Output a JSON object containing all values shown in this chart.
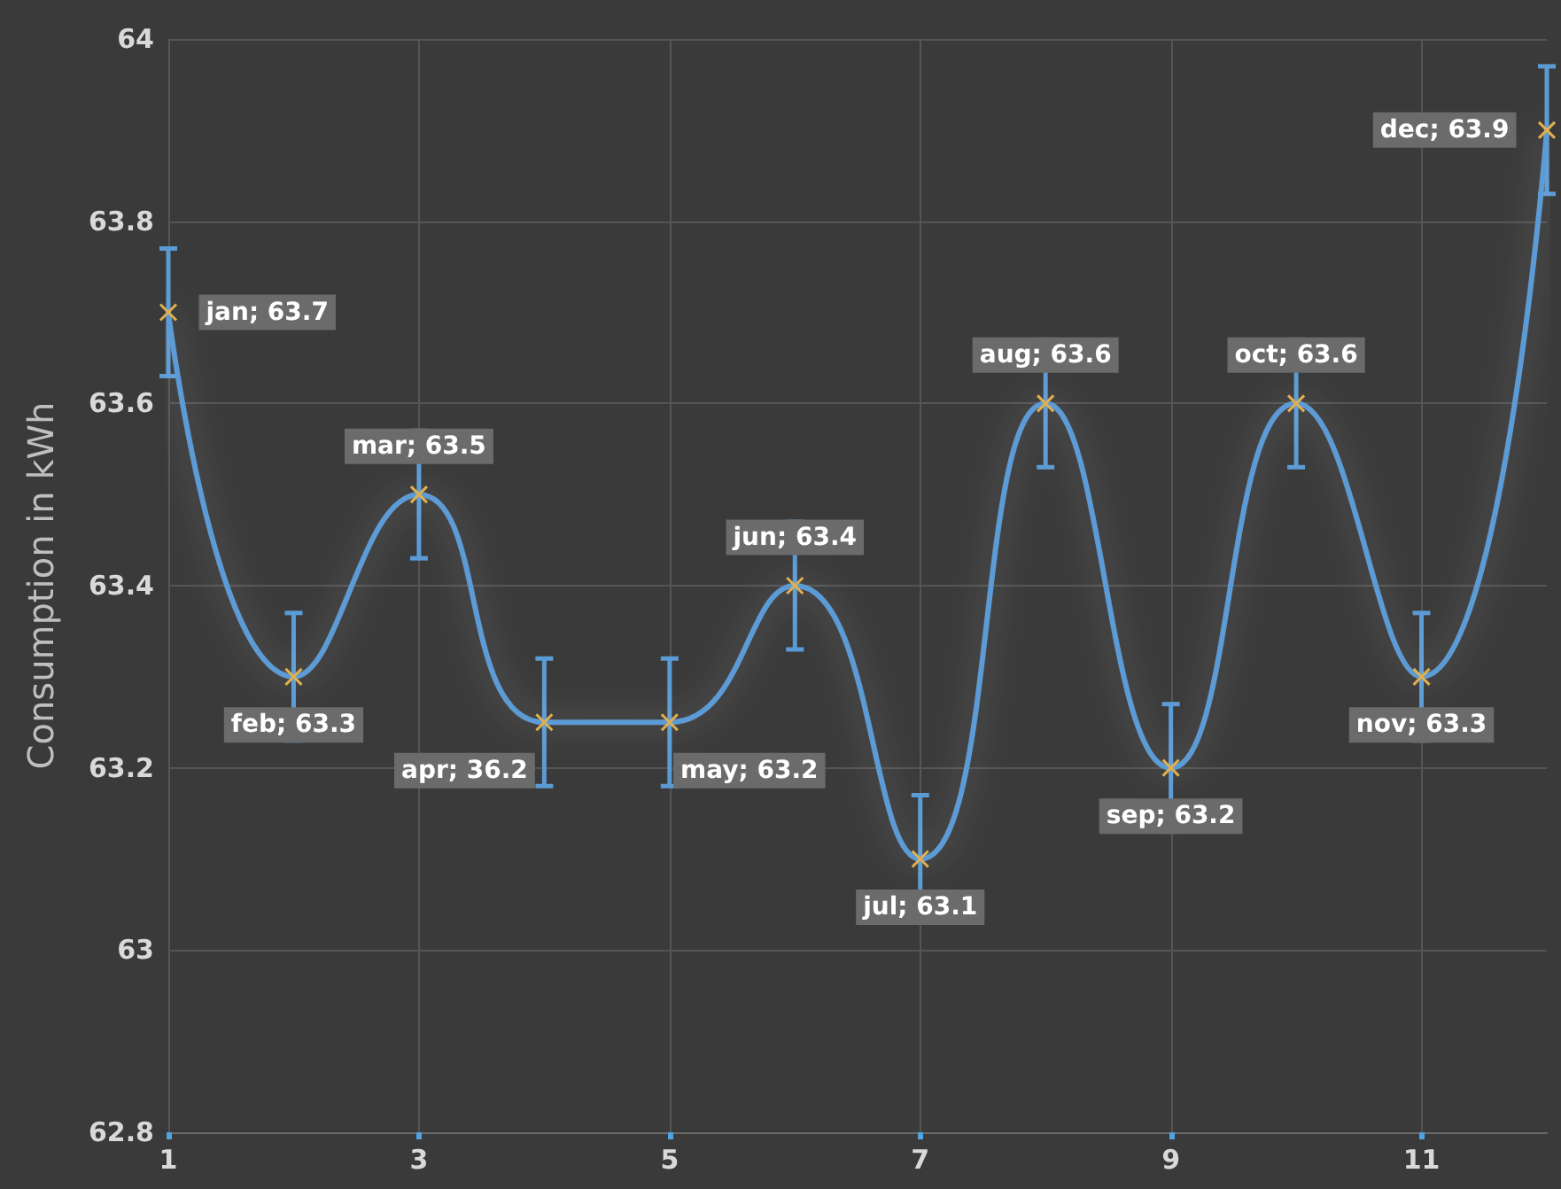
{
  "chart_data": {
    "type": "line",
    "ylabel": "Consumption in kWh",
    "x": [
      1,
      2,
      3,
      4,
      5,
      6,
      7,
      8,
      9,
      10,
      11,
      12
    ],
    "series": [
      {
        "color": "#5b9bd5",
        "values": [
          63.7,
          63.3,
          63.5,
          63.25,
          63.25,
          63.4,
          63.1,
          63.6,
          63.2,
          63.6,
          63.3,
          63.9
        ],
        "errors": [
          0.07,
          0.07,
          0.07,
          0.07,
          0.07,
          0.07,
          0.07,
          0.07,
          0.07,
          0.07,
          0.07,
          0.07
        ],
        "value_labels": [
          "jan; 63.7",
          "feb; 63.3",
          "mar; 63.5",
          "apr; 36.2",
          "may; 63.2",
          "jun; 63.4",
          "jul; 63.1",
          "aug; 63.6",
          "sep; 63.2",
          "oct; 63.6",
          "nov; 63.3",
          "dec; 63.9"
        ]
      }
    ],
    "xlim": [
      1,
      12
    ],
    "xticks": [
      1,
      3,
      5,
      7,
      9,
      11
    ],
    "ylim": [
      62.8,
      64
    ],
    "yticks": [
      62.8,
      63,
      63.2,
      63.4,
      63.6,
      63.8,
      64
    ],
    "grid": true,
    "marker": "cross",
    "line_style": "solid"
  }
}
